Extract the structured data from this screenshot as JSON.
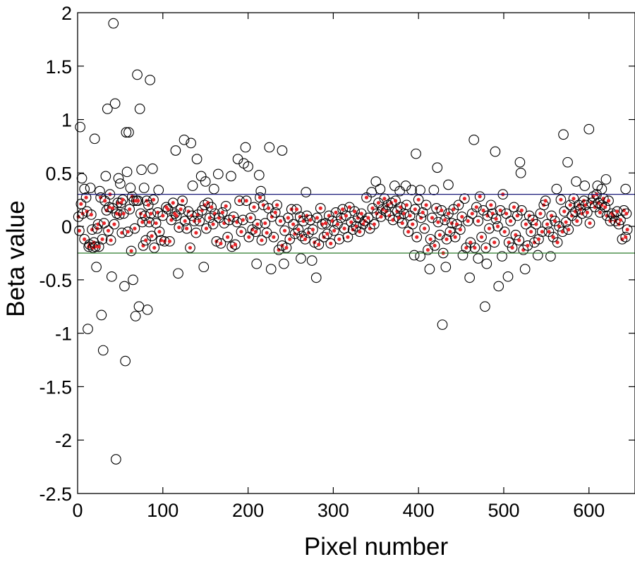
{
  "chart_data": {
    "type": "scatter",
    "title": "",
    "xlabel": "Pixel number",
    "ylabel": "Beta value",
    "xlim": [
      0,
      654
    ],
    "ylim": [
      -2.5,
      2
    ],
    "xticks": [
      "0",
      "100",
      "200",
      "300",
      "400",
      "500",
      "600"
    ],
    "yticks": [
      "2",
      "1.5",
      "1",
      "0.5",
      "0",
      "-0.5",
      "-1",
      "-1.5",
      "-2",
      "-2.5"
    ],
    "grid": false,
    "threshold_lines": [
      {
        "name": "upper-threshold",
        "y": 0.3,
        "color": "#1a1a7a"
      },
      {
        "name": "lower-threshold",
        "y": -0.25,
        "color": "#2a7a2a"
      }
    ],
    "marker_color": "#000000",
    "inlier_dot_color": "#e8262a",
    "outliers": [
      [
        3,
        0.93
      ],
      [
        5,
        0.45
      ],
      [
        12,
        -0.96
      ],
      [
        20,
        0.82
      ],
      [
        22,
        -0.38
      ],
      [
        28,
        -0.83
      ],
      [
        30,
        -1.16
      ],
      [
        33,
        0.47
      ],
      [
        35,
        1.1
      ],
      [
        40,
        -0.47
      ],
      [
        42,
        1.9
      ],
      [
        44,
        1.15
      ],
      [
        45,
        -2.18
      ],
      [
        48,
        0.45
      ],
      [
        55,
        -0.56
      ],
      [
        56,
        -1.26
      ],
      [
        57,
        0.88
      ],
      [
        60,
        0.88
      ],
      [
        58,
        0.51
      ],
      [
        65,
        -0.5
      ],
      [
        68,
        -0.84
      ],
      [
        70,
        1.42
      ],
      [
        72,
        -0.75
      ],
      [
        73,
        1.1
      ],
      [
        75,
        0.53
      ],
      [
        82,
        -0.78
      ],
      [
        85,
        1.37
      ],
      [
        88,
        0.54
      ],
      [
        115,
        0.71
      ],
      [
        118,
        -0.44
      ],
      [
        125,
        0.81
      ],
      [
        133,
        0.78
      ],
      [
        140,
        0.63
      ],
      [
        145,
        0.47
      ],
      [
        148,
        -0.38
      ],
      [
        165,
        0.49
      ],
      [
        180,
        0.47
      ],
      [
        188,
        0.63
      ],
      [
        195,
        0.59
      ],
      [
        197,
        0.74
      ],
      [
        200,
        0.56
      ],
      [
        210,
        -0.35
      ],
      [
        213,
        0.48
      ],
      [
        225,
        0.74
      ],
      [
        227,
        -0.4
      ],
      [
        240,
        0.71
      ],
      [
        242,
        -0.35
      ],
      [
        268,
        0.32
      ],
      [
        280,
        -0.48
      ],
      [
        262,
        -0.3
      ],
      [
        275,
        -0.32
      ],
      [
        397,
        0.68
      ],
      [
        413,
        -0.4
      ],
      [
        422,
        0.55
      ],
      [
        428,
        -0.92
      ],
      [
        432,
        -0.38
      ],
      [
        460,
        -0.48
      ],
      [
        465,
        0.81
      ],
      [
        478,
        -0.75
      ],
      [
        480,
        -0.35
      ],
      [
        490,
        0.7
      ],
      [
        494,
        -0.56
      ],
      [
        505,
        -0.47
      ],
      [
        519,
        0.6
      ],
      [
        520,
        0.5
      ],
      [
        525,
        -0.4
      ],
      [
        570,
        0.86
      ],
      [
        575,
        0.6
      ],
      [
        600,
        0.91
      ],
      [
        610,
        0.38
      ],
      [
        8,
        0.35
      ],
      [
        15,
        0.36
      ],
      [
        26,
        0.33
      ],
      [
        50,
        0.4
      ],
      [
        62,
        0.36
      ],
      [
        78,
        0.36
      ],
      [
        95,
        0.34
      ],
      [
        135,
        0.38
      ],
      [
        150,
        0.42
      ],
      [
        160,
        0.35
      ],
      [
        215,
        0.33
      ],
      [
        345,
        0.32
      ],
      [
        350,
        0.42
      ],
      [
        355,
        0.35
      ],
      [
        372,
        0.38
      ],
      [
        378,
        0.33
      ],
      [
        385,
        0.38
      ],
      [
        392,
        0.34
      ],
      [
        402,
        0.34
      ],
      [
        418,
        0.34
      ],
      [
        435,
        0.39
      ],
      [
        562,
        0.35
      ],
      [
        585,
        0.42
      ],
      [
        595,
        0.38
      ],
      [
        615,
        0.35
      ],
      [
        620,
        0.44
      ],
      [
        643,
        0.35
      ],
      [
        402,
        -0.28
      ],
      [
        395,
        -0.27
      ],
      [
        452,
        -0.27
      ],
      [
        470,
        -0.3
      ],
      [
        498,
        -0.28
      ],
      [
        540,
        -0.27
      ],
      [
        555,
        -0.28
      ]
    ],
    "inliers": [
      [
        1,
        0.09
      ],
      [
        2,
        -0.04
      ],
      [
        4,
        0.21
      ],
      [
        6,
        0.12
      ],
      [
        8,
        -0.12
      ],
      [
        10,
        0.27
      ],
      [
        11,
        0.14
      ],
      [
        13,
        -0.19
      ],
      [
        14,
        -0.17
      ],
      [
        16,
        0.11
      ],
      [
        17,
        -0.03
      ],
      [
        18,
        -0.2
      ],
      [
        19,
        -0.15
      ],
      [
        21,
        -0.19
      ],
      [
        23,
        -0.02
      ],
      [
        24,
        0.02
      ],
      [
        25,
        -0.19
      ],
      [
        27,
        0.27
      ],
      [
        29,
        -0.12
      ],
      [
        31,
        0.03
      ],
      [
        32,
        0.24
      ],
      [
        34,
        0.15
      ],
      [
        36,
        -0.04
      ],
      [
        37,
        0.18
      ],
      [
        38,
        0.3
      ],
      [
        39,
        -0.13
      ],
      [
        41,
        0.17
      ],
      [
        43,
        0.02
      ],
      [
        46,
        0.12
      ],
      [
        47,
        0.22
      ],
      [
        49,
        0.11
      ],
      [
        51,
        0.22
      ],
      [
        52,
        -0.06
      ],
      [
        53,
        0.25
      ],
      [
        54,
        0.12
      ],
      [
        59,
        -0.05
      ],
      [
        61,
        0.16
      ],
      [
        63,
        -0.23
      ],
      [
        64,
        0.28
      ],
      [
        66,
        0.24
      ],
      [
        67,
        -0.02
      ],
      [
        69,
        0.24
      ],
      [
        71,
        0.24
      ],
      [
        74,
        0.12
      ],
      [
        76,
        0.04
      ],
      [
        77,
        -0.18
      ],
      [
        79,
        0.1
      ],
      [
        80,
        -0.13
      ],
      [
        81,
        0.24
      ],
      [
        83,
        0.2
      ],
      [
        84,
        0.04
      ],
      [
        86,
        0.12
      ],
      [
        87,
        -0.09
      ],
      [
        89,
        0.25
      ],
      [
        90,
        -0.2
      ],
      [
        92,
        0.03
      ],
      [
        94,
        0.13
      ],
      [
        96,
        -0.05
      ],
      [
        98,
        -0.13
      ],
      [
        100,
        0.1
      ],
      [
        102,
        -0.14
      ],
      [
        104,
        0.18
      ],
      [
        106,
        0.16
      ],
      [
        108,
        -0.14
      ],
      [
        110,
        0.06
      ],
      [
        112,
        0.22
      ],
      [
        114,
        0.12
      ],
      [
        116,
        0.1
      ],
      [
        119,
        -0.01
      ],
      [
        121,
        0.16
      ],
      [
        123,
        0.24
      ],
      [
        126,
        0.05
      ],
      [
        128,
        -0.02
      ],
      [
        130,
        0.14
      ],
      [
        132,
        -0.2
      ],
      [
        134,
        0.1
      ],
      [
        137,
        0.05
      ],
      [
        139,
        -0.06
      ],
      [
        141,
        0.11
      ],
      [
        143,
        0.05
      ],
      [
        146,
        0.15
      ],
      [
        149,
        0.2
      ],
      [
        151,
        -0.02
      ],
      [
        153,
        0.22
      ],
      [
        155,
        0.08
      ],
      [
        157,
        0.18
      ],
      [
        159,
        0.02
      ],
      [
        161,
        0.12
      ],
      [
        163,
        -0.14
      ],
      [
        166,
        0.08
      ],
      [
        168,
        -0.16
      ],
      [
        170,
        0.13
      ],
      [
        172,
        0.03
      ],
      [
        174,
        0.19
      ],
      [
        176,
        -0.1
      ],
      [
        178,
        0.06
      ],
      [
        181,
        -0.19
      ],
      [
        183,
        0.09
      ],
      [
        185,
        -0.17
      ],
      [
        187,
        0.04
      ],
      [
        190,
        0.24
      ],
      [
        192,
        -0.05
      ],
      [
        194,
        0.06
      ],
      [
        198,
        0.24
      ],
      [
        201,
        -0.1
      ],
      [
        203,
        0.08
      ],
      [
        205,
        -0.03
      ],
      [
        207,
        0.18
      ],
      [
        209,
        -0.05
      ],
      [
        211,
        0.02
      ],
      [
        214,
        0.27
      ],
      [
        216,
        -0.13
      ],
      [
        218,
        0.2
      ],
      [
        220,
        0.03
      ],
      [
        222,
        -0.06
      ],
      [
        224,
        0.17
      ],
      [
        228,
        0.09
      ],
      [
        230,
        -0.1
      ],
      [
        232,
        0.13
      ],
      [
        234,
        0.2
      ],
      [
        236,
        -0.22
      ],
      [
        238,
        0.05
      ],
      [
        240,
        -0.18
      ],
      [
        243,
        -0.04
      ],
      [
        245,
        -0.2
      ],
      [
        247,
        0.08
      ],
      [
        249,
        -0.12
      ],
      [
        251,
        0.16
      ],
      [
        253,
        0.02
      ],
      [
        255,
        -0.07
      ],
      [
        257,
        0.16
      ],
      [
        259,
        -0.03
      ],
      [
        261,
        0.09
      ],
      [
        263,
        -0.09
      ],
      [
        265,
        0.05
      ],
      [
        267,
        -0.12
      ],
      [
        269,
        0.1
      ],
      [
        271,
        -0.06
      ],
      [
        273,
        0.06
      ],
      [
        276,
        -0.03
      ],
      [
        278,
        -0.15
      ],
      [
        281,
        0.08
      ],
      [
        283,
        -0.17
      ],
      [
        285,
        0.17
      ],
      [
        287,
        0.02
      ],
      [
        289,
        -0.1
      ],
      [
        291,
        0.03
      ],
      [
        293,
        -0.07
      ],
      [
        295,
        0.1
      ],
      [
        297,
        -0.16
      ],
      [
        299,
        0.05
      ],
      [
        301,
        -0.04
      ],
      [
        303,
        0.13
      ],
      [
        305,
        0.02
      ],
      [
        307,
        -0.12
      ],
      [
        309,
        0.08
      ],
      [
        311,
        0.16
      ],
      [
        313,
        -0.02
      ],
      [
        315,
        0.1
      ],
      [
        317,
        -0.1
      ],
      [
        319,
        0.18
      ],
      [
        321,
        0.04
      ],
      [
        323,
        -0.03
      ],
      [
        325,
        0.14
      ],
      [
        327,
        0.0
      ],
      [
        329,
        0.08
      ],
      [
        331,
        -0.05
      ],
      [
        333,
        0.12
      ],
      [
        335,
        0.02
      ],
      [
        337,
        0.05
      ],
      [
        339,
        0.27
      ],
      [
        341,
        0.08
      ],
      [
        343,
        -0.02
      ],
      [
        346,
        0.17
      ],
      [
        348,
        0.02
      ],
      [
        351,
        0.12
      ],
      [
        353,
        0.22
      ],
      [
        356,
        0.09
      ],
      [
        358,
        0.16
      ],
      [
        360,
        0.26
      ],
      [
        362,
        0.14
      ],
      [
        364,
        0.2
      ],
      [
        366,
        0.1
      ],
      [
        368,
        0.22
      ],
      [
        370,
        0.06
      ],
      [
        373,
        0.24
      ],
      [
        375,
        0.14
      ],
      [
        377,
        0.08
      ],
      [
        379,
        0.18
      ],
      [
        381,
        0.03
      ],
      [
        383,
        0.12
      ],
      [
        386,
        0.2
      ],
      [
        388,
        -0.05
      ],
      [
        390,
        0.1
      ],
      [
        393,
        0.02
      ],
      [
        396,
        0.16
      ],
      [
        398,
        -0.1
      ],
      [
        400,
        0.25
      ],
      [
        403,
        0.08
      ],
      [
        405,
        0.13
      ],
      [
        407,
        -0.02
      ],
      [
        409,
        0.2
      ],
      [
        411,
        -0.22
      ],
      [
        414,
        -0.12
      ],
      [
        416,
        0.08
      ],
      [
        419,
        -0.18
      ],
      [
        421,
        0.17
      ],
      [
        423,
        0.04
      ],
      [
        425,
        -0.08
      ],
      [
        427,
        0.15
      ],
      [
        429,
        -0.25
      ],
      [
        431,
        0.06
      ],
      [
        433,
        -0.12
      ],
      [
        435,
        0.12
      ],
      [
        437,
        -0.05
      ],
      [
        439,
        0.03
      ],
      [
        441,
        0.16
      ],
      [
        443,
        -0.1
      ],
      [
        445,
        0.02
      ],
      [
        447,
        0.2
      ],
      [
        449,
        -0.03
      ],
      [
        451,
        0.09
      ],
      [
        454,
        0.26
      ],
      [
        456,
        -0.2
      ],
      [
        458,
        0.05
      ],
      [
        461,
        -0.15
      ],
      [
        463,
        0.12
      ],
      [
        466,
        -0.2
      ],
      [
        468,
        0.18
      ],
      [
        470,
        0.05
      ],
      [
        472,
        0.28
      ],
      [
        474,
        -0.1
      ],
      [
        476,
        0.15
      ],
      [
        479,
        -0.2
      ],
      [
        481,
        0.1
      ],
      [
        483,
        -0.02
      ],
      [
        485,
        0.2
      ],
      [
        487,
        0.12
      ],
      [
        489,
        -0.15
      ],
      [
        491,
        0.07
      ],
      [
        493,
        0.0
      ],
      [
        496,
        0.15
      ],
      [
        499,
        0.3
      ],
      [
        501,
        -0.05
      ],
      [
        503,
        0.12
      ],
      [
        506,
        -0.15
      ],
      [
        508,
        0.05
      ],
      [
        510,
        -0.2
      ],
      [
        512,
        0.18
      ],
      [
        514,
        -0.08
      ],
      [
        516,
        0.1
      ],
      [
        518,
        -0.13
      ],
      [
        521,
        0.15
      ],
      [
        523,
        -0.22
      ],
      [
        526,
        0.02
      ],
      [
        528,
        -0.18
      ],
      [
        530,
        0.1
      ],
      [
        532,
        -0.05
      ],
      [
        534,
        0.06
      ],
      [
        536,
        -0.15
      ],
      [
        538,
        0.02
      ],
      [
        541,
        -0.12
      ],
      [
        543,
        0.12
      ],
      [
        545,
        -0.05
      ],
      [
        547,
        0.2
      ],
      [
        549,
        0.24
      ],
      [
        551,
        0.02
      ],
      [
        553,
        -0.05
      ],
      [
        556,
        0.1
      ],
      [
        558,
        -0.1
      ],
      [
        560,
        0.05
      ],
      [
        563,
        -0.15
      ],
      [
        565,
        0.0
      ],
      [
        567,
        0.25
      ],
      [
        569,
        -0.05
      ],
      [
        571,
        0.14
      ],
      [
        573,
        0.04
      ],
      [
        576,
        -0.03
      ],
      [
        578,
        0.2
      ],
      [
        580,
        0.1
      ],
      [
        582,
        0.26
      ],
      [
        584,
        0.14
      ],
      [
        586,
        0.05
      ],
      [
        588,
        0.2
      ],
      [
        590,
        0.16
      ],
      [
        592,
        0.12
      ],
      [
        594,
        0.24
      ],
      [
        596,
        0.2
      ],
      [
        598,
        0.13
      ],
      [
        601,
        0.03
      ],
      [
        603,
        0.22
      ],
      [
        605,
        0.28
      ],
      [
        607,
        0.18
      ],
      [
        609,
        0.3
      ],
      [
        611,
        0.22
      ],
      [
        613,
        0.13
      ],
      [
        615,
        0.2
      ],
      [
        617,
        0.26
      ],
      [
        619,
        0.18
      ],
      [
        621,
        0.1
      ],
      [
        623,
        0.24
      ],
      [
        625,
        0.05
      ],
      [
        627,
        0.12
      ],
      [
        629,
        0.1
      ],
      [
        631,
        0.05
      ],
      [
        633,
        0.14
      ],
      [
        635,
        0.02
      ],
      [
        637,
        0.06
      ],
      [
        639,
        -0.12
      ],
      [
        641,
        0.15
      ],
      [
        643,
        -0.1
      ],
      [
        645,
        -0.03
      ],
      [
        644,
        0.12
      ]
    ]
  }
}
